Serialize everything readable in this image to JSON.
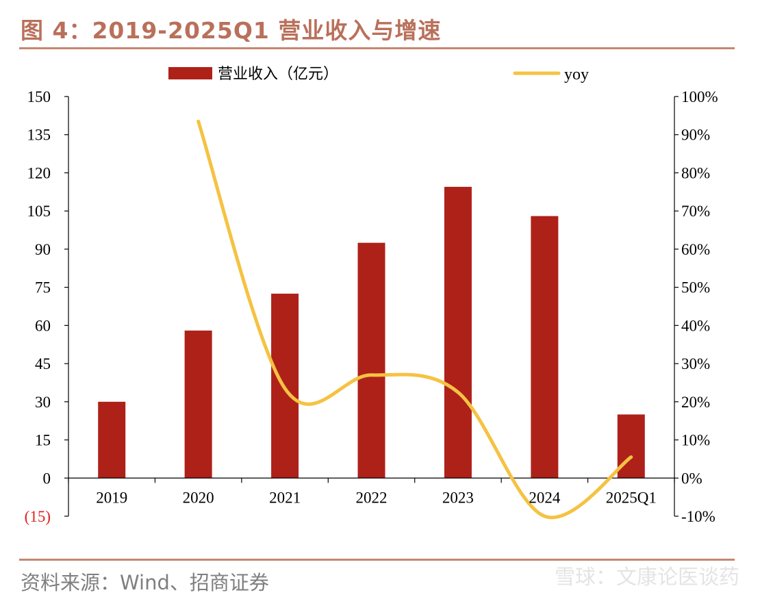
{
  "header": {
    "title": "图 4：2019-2025Q1 营业收入与增速"
  },
  "footer": {
    "source": "资料来源：Wind、招商证券",
    "watermark": "雪球：文康论医谈药"
  },
  "colors": {
    "bar": "#ae2119",
    "line": "#f5c242",
    "title": "#b9705a",
    "rule": "#c4876f",
    "negative_tick": "#e02020"
  },
  "chart_data": {
    "type": "bar",
    "categories": [
      "2019",
      "2020",
      "2021",
      "2022",
      "2023",
      "2024",
      "2025Q1"
    ],
    "series": [
      {
        "name": "营业收入（亿元）",
        "type": "bar",
        "axis": "left",
        "values": [
          30,
          58,
          72.5,
          92.5,
          114.5,
          103,
          25
        ]
      },
      {
        "name": "yoy",
        "type": "line",
        "axis": "right",
        "values": [
          null,
          93.5,
          23.5,
          27,
          22.5,
          -10,
          5.5
        ]
      }
    ],
    "y_left": {
      "min": -15,
      "max": 150,
      "ticks": [
        {
          "v": 150,
          "label": "150"
        },
        {
          "v": 135,
          "label": "135"
        },
        {
          "v": 120,
          "label": "120"
        },
        {
          "v": 105,
          "label": "105"
        },
        {
          "v": 90,
          "label": "90"
        },
        {
          "v": 75,
          "label": "75"
        },
        {
          "v": 60,
          "label": "60"
        },
        {
          "v": 45,
          "label": "45"
        },
        {
          "v": 30,
          "label": "30"
        },
        {
          "v": 15,
          "label": "15"
        },
        {
          "v": 0,
          "label": "0"
        },
        {
          "v": -15,
          "label": "(15)",
          "negative": true
        }
      ]
    },
    "y_right": {
      "min": -10,
      "max": 100,
      "unit": "%",
      "ticks": [
        {
          "v": 100,
          "label": "100%"
        },
        {
          "v": 90,
          "label": "90%"
        },
        {
          "v": 80,
          "label": "80%"
        },
        {
          "v": 70,
          "label": "70%"
        },
        {
          "v": 60,
          "label": "60%"
        },
        {
          "v": 50,
          "label": "50%"
        },
        {
          "v": 40,
          "label": "40%"
        },
        {
          "v": 30,
          "label": "30%"
        },
        {
          "v": 20,
          "label": "20%"
        },
        {
          "v": 10,
          "label": "10%"
        },
        {
          "v": 0,
          "label": "0%"
        },
        {
          "v": -10,
          "label": "-10%"
        }
      ]
    },
    "legend": {
      "position": "top",
      "items": [
        "营业收入（亿元）",
        "yoy"
      ]
    },
    "grid": false
  }
}
